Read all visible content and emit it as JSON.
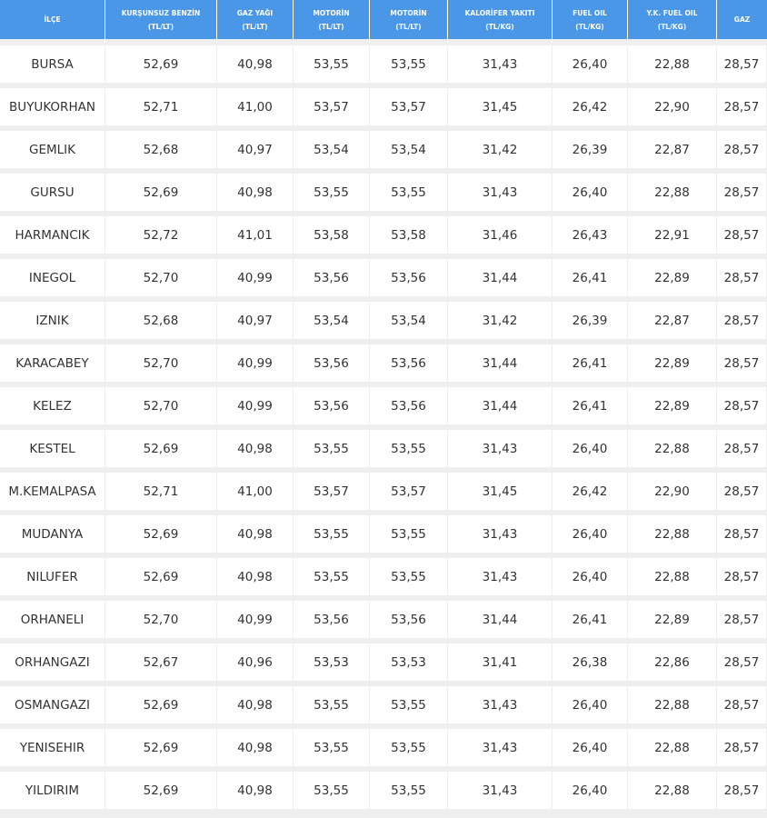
{
  "headers": [
    {
      "l1": "İLÇE",
      "l2": ""
    },
    {
      "l1": "KURŞUNSUZ BENZİN",
      "l2": "(TL/LT)"
    },
    {
      "l1": "GAZ YAĞI",
      "l2": "(TL/LT)"
    },
    {
      "l1": "MOTORİN",
      "l2": "(TL/LT)"
    },
    {
      "l1": "MOTORİN",
      "l2": "(TL/LT)"
    },
    {
      "l1": "KALORİFER YAKITI",
      "l2": "(TL/KG)"
    },
    {
      "l1": "FUEL OIL",
      "l2": "(TL/KG)"
    },
    {
      "l1": "Y.K. FUEL OIL",
      "l2": "(TL/KG)"
    },
    {
      "l1": "GAZ",
      "l2": ""
    }
  ],
  "rows": [
    [
      "BURSA",
      "52,69",
      "40,98",
      "53,55",
      "53,55",
      "31,43",
      "26,40",
      "22,88",
      "28,57"
    ],
    [
      "BUYUKORHAN",
      "52,71",
      "41,00",
      "53,57",
      "53,57",
      "31,45",
      "26,42",
      "22,90",
      "28,57"
    ],
    [
      "GEMLIK",
      "52,68",
      "40,97",
      "53,54",
      "53,54",
      "31,42",
      "26,39",
      "22,87",
      "28,57"
    ],
    [
      "GURSU",
      "52,69",
      "40,98",
      "53,55",
      "53,55",
      "31,43",
      "26,40",
      "22,88",
      "28,57"
    ],
    [
      "HARMANCIK",
      "52,72",
      "41,01",
      "53,58",
      "53,58",
      "31,46",
      "26,43",
      "22,91",
      "28,57"
    ],
    [
      "INEGOL",
      "52,70",
      "40,99",
      "53,56",
      "53,56",
      "31,44",
      "26,41",
      "22,89",
      "28,57"
    ],
    [
      "IZNIK",
      "52,68",
      "40,97",
      "53,54",
      "53,54",
      "31,42",
      "26,39",
      "22,87",
      "28,57"
    ],
    [
      "KARACABEY",
      "52,70",
      "40,99",
      "53,56",
      "53,56",
      "31,44",
      "26,41",
      "22,89",
      "28,57"
    ],
    [
      "KELEZ",
      "52,70",
      "40,99",
      "53,56",
      "53,56",
      "31,44",
      "26,41",
      "22,89",
      "28,57"
    ],
    [
      "KESTEL",
      "52,69",
      "40,98",
      "53,55",
      "53,55",
      "31,43",
      "26,40",
      "22,88",
      "28,57"
    ],
    [
      "M.KEMALPASA",
      "52,71",
      "41,00",
      "53,57",
      "53,57",
      "31,45",
      "26,42",
      "22,90",
      "28,57"
    ],
    [
      "MUDANYA",
      "52,69",
      "40,98",
      "53,55",
      "53,55",
      "31,43",
      "26,40",
      "22,88",
      "28,57"
    ],
    [
      "NILUFER",
      "52,69",
      "40,98",
      "53,55",
      "53,55",
      "31,43",
      "26,40",
      "22,88",
      "28,57"
    ],
    [
      "ORHANELI",
      "52,70",
      "40,99",
      "53,56",
      "53,56",
      "31,44",
      "26,41",
      "22,89",
      "28,57"
    ],
    [
      "ORHANGAZI",
      "52,67",
      "40,96",
      "53,53",
      "53,53",
      "31,41",
      "26,38",
      "22,86",
      "28,57"
    ],
    [
      "OSMANGAZI",
      "52,69",
      "40,98",
      "53,55",
      "53,55",
      "31,43",
      "26,40",
      "22,88",
      "28,57"
    ],
    [
      "YENISEHIR",
      "52,69",
      "40,98",
      "53,55",
      "53,55",
      "31,43",
      "26,40",
      "22,88",
      "28,57"
    ],
    [
      "YILDIRIM",
      "52,69",
      "40,98",
      "53,55",
      "53,55",
      "31,43",
      "26,40",
      "22,88",
      "28,57"
    ]
  ]
}
